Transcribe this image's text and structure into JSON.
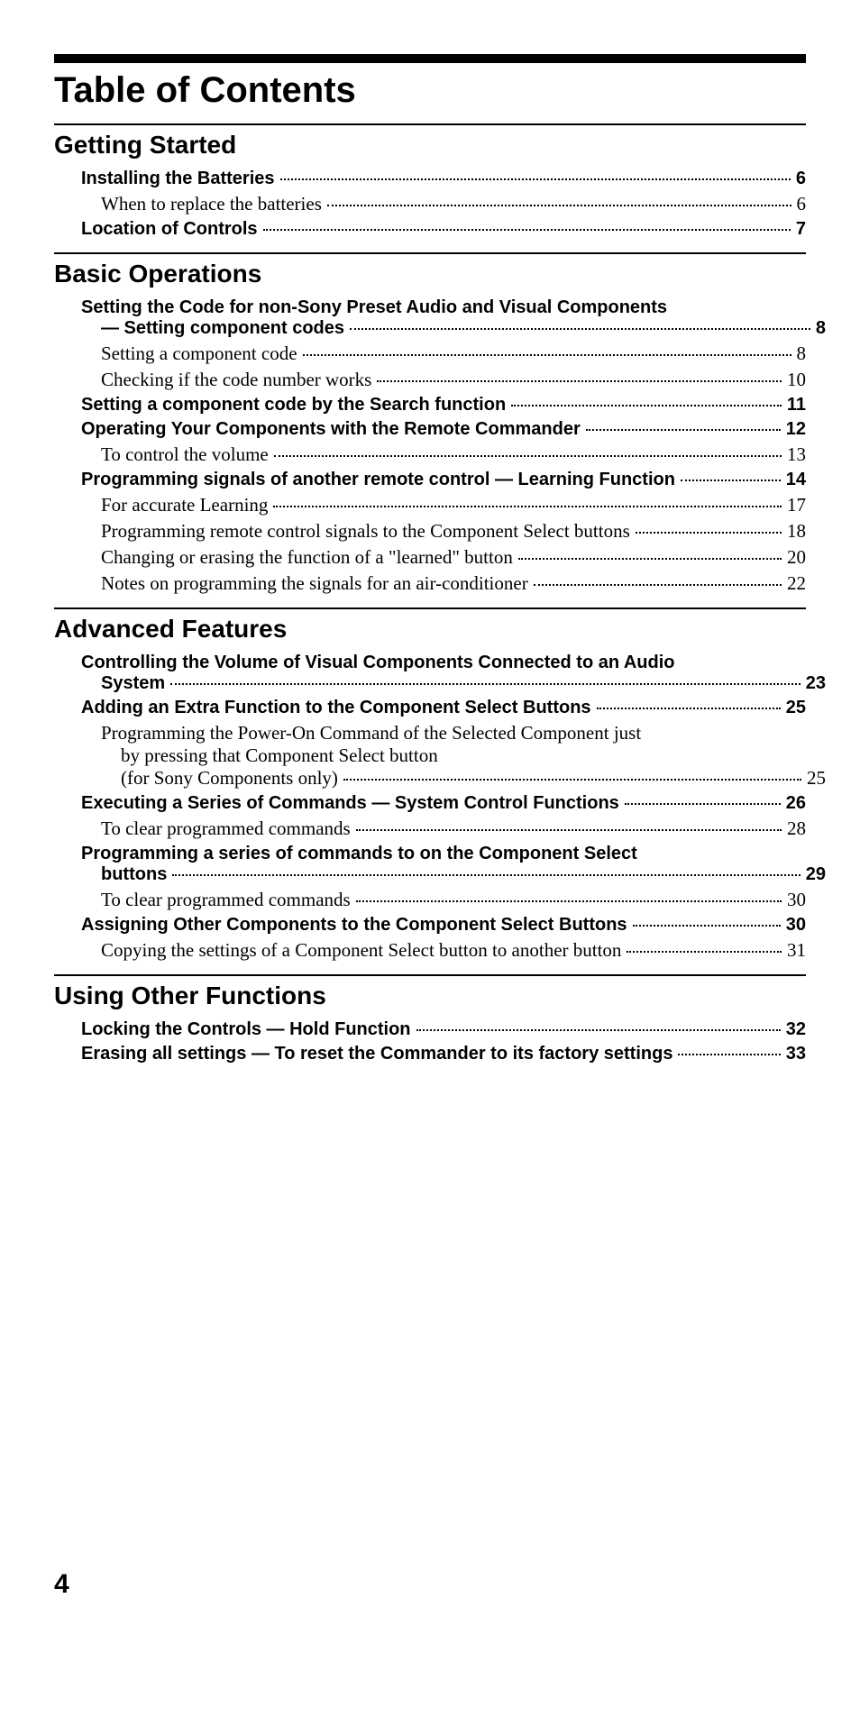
{
  "title": "Table of Contents",
  "page_number": "4",
  "colors": {
    "text": "#000000",
    "background": "#ffffff",
    "rule": "#000000"
  },
  "typography": {
    "title_font": "Helvetica",
    "title_size_pt": 30,
    "title_weight": 800,
    "section_font": "Helvetica",
    "section_size_pt": 21,
    "section_weight": 800,
    "bold_entry_font": "Helvetica",
    "bold_entry_size_pt": 15,
    "bold_entry_weight": 800,
    "normal_entry_font": "Georgia",
    "normal_entry_size_pt": 16,
    "normal_entry_weight": 400,
    "page_num_size_pt": 22
  },
  "sections": [
    {
      "title": "Getting Started",
      "entries": [
        {
          "label": "Installing the Batteries",
          "page": "6",
          "bold": true,
          "indent": 0
        },
        {
          "label": "When to replace the batteries",
          "page": "6",
          "bold": false,
          "indent": 1
        },
        {
          "label": "Location of Controls",
          "page": "7",
          "bold": true,
          "indent": 0
        }
      ]
    },
    {
      "title": "Basic Operations",
      "entries": [
        {
          "label_lines": [
            "Setting the Code for non-Sony Preset Audio and Visual Components",
            "— Setting component codes"
          ],
          "page": "8",
          "bold": true,
          "indent": 0
        },
        {
          "label": "Setting a component code",
          "page": "8",
          "bold": false,
          "indent": 1
        },
        {
          "label": "Checking if the code number works",
          "page": "10",
          "bold": false,
          "indent": 1
        },
        {
          "label": "Setting a component code by the Search function",
          "page": "11",
          "bold": true,
          "indent": 0
        },
        {
          "label": "Operating Your Components with the Remote Commander",
          "page": "12",
          "bold": true,
          "indent": 0
        },
        {
          "label": "To control the volume",
          "page": "13",
          "bold": false,
          "indent": 1
        },
        {
          "label": "Programming signals of another remote control — Learning Function",
          "page": "14",
          "bold": true,
          "indent": 0
        },
        {
          "label": "For accurate Learning",
          "page": "17",
          "bold": false,
          "indent": 1
        },
        {
          "label": "Programming remote control signals to the Component Select buttons",
          "page": "18",
          "bold": false,
          "indent": 1
        },
        {
          "label": "Changing or erasing the function of a \"learned\" button",
          "page": "20",
          "bold": false,
          "indent": 1
        },
        {
          "label": "Notes on programming the signals for an air-conditioner",
          "page": "22",
          "bold": false,
          "indent": 1
        }
      ]
    },
    {
      "title": "Advanced Features",
      "entries": [
        {
          "label_lines": [
            "Controlling the Volume of Visual Components Connected to an Audio",
            "System"
          ],
          "page": "23",
          "bold": true,
          "indent": 0
        },
        {
          "label": "Adding an Extra Function to the Component Select Buttons",
          "page": "25",
          "bold": true,
          "indent": 0
        },
        {
          "label_lines": [
            "Programming the Power-On Command of the Selected Component just",
            "by pressing that Component Select button",
            "(for Sony Components only)"
          ],
          "page": "25",
          "bold": false,
          "indent": 1
        },
        {
          "label": "Executing a Series of Commands — System Control Functions",
          "page": "26",
          "bold": true,
          "indent": 0
        },
        {
          "label": "To clear programmed commands",
          "page": "28",
          "bold": false,
          "indent": 1
        },
        {
          "label_lines": [
            "Programming a series of commands to on the Component Select",
            "buttons"
          ],
          "page": "29",
          "bold": true,
          "indent": 0
        },
        {
          "label": "To clear programmed commands",
          "page": "30",
          "bold": false,
          "indent": 1
        },
        {
          "label": "Assigning Other Components to the Component Select Buttons",
          "page": "30",
          "bold": true,
          "indent": 0
        },
        {
          "label": "Copying the settings of a Component Select button to another button",
          "page": "31",
          "bold": false,
          "indent": 1
        }
      ]
    },
    {
      "title": "Using Other Functions",
      "entries": [
        {
          "label": "Locking the Controls — Hold Function",
          "page": "32",
          "bold": true,
          "indent": 0
        },
        {
          "label": "Erasing all settings — To reset the Commander to its factory settings",
          "page": "33",
          "bold": true,
          "indent": 0
        }
      ]
    }
  ]
}
